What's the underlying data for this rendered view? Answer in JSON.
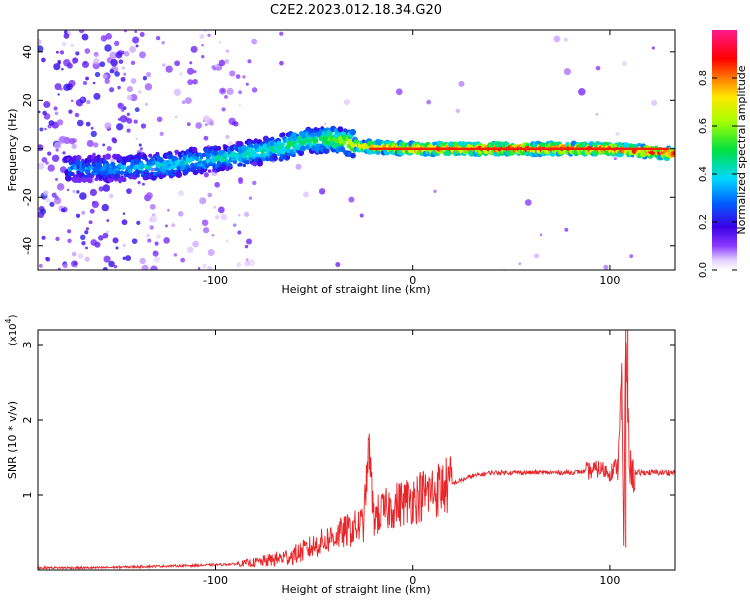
{
  "title": "C2E2.2023.012.18.34.G20",
  "chart_data": [
    {
      "type": "heatmap",
      "title": "C2E2.2023.012.18.34.G20",
      "xlabel": "Height of straight line (km)",
      "ylabel": "Frequency (Hz)",
      "xlim": [
        -190,
        133
      ],
      "ylim": [
        -50,
        49
      ],
      "xticks": [
        -100,
        0,
        100
      ],
      "yticks": [
        -40,
        -20,
        0,
        20,
        40
      ],
      "colorbar": {
        "label": "Normalized spectral amplitude",
        "range": [
          0,
          1
        ],
        "ticks": [
          0.0,
          0.2,
          0.4,
          0.6,
          0.8
        ],
        "colormap": "rainbow (white-violet-blue-cyan-green-yellow-red-magenta)"
      },
      "ridge": [
        {
          "x": -170,
          "freq": -8,
          "amp": 0.3
        },
        {
          "x": -150,
          "freq": -8,
          "amp": 0.35
        },
        {
          "x": -130,
          "freq": -7,
          "amp": 0.4
        },
        {
          "x": -110,
          "freq": -5,
          "amp": 0.4
        },
        {
          "x": -90,
          "freq": -3,
          "amp": 0.45
        },
        {
          "x": -70,
          "freq": 0,
          "amp": 0.45
        },
        {
          "x": -55,
          "freq": 3,
          "amp": 0.5
        },
        {
          "x": -40,
          "freq": 4,
          "amp": 0.55
        },
        {
          "x": -25,
          "freq": 1,
          "amp": 0.75
        },
        {
          "x": 0,
          "freq": 0,
          "amp": 0.85
        },
        {
          "x": 50,
          "freq": 0,
          "amp": 0.9
        },
        {
          "x": 100,
          "freq": 0,
          "amp": 0.9
        },
        {
          "x": 133,
          "freq": -2,
          "amp": 0.85
        }
      ]
    },
    {
      "type": "line",
      "xlabel": "Height of straight line (km)",
      "ylabel": "SNR (10 * v/v)",
      "yunit": "(x10",
      "yunit_exp": "4",
      "yunit_close": ")",
      "xlim": [
        -190,
        133
      ],
      "ylim": [
        0,
        3.2
      ],
      "xticks": [
        -100,
        0,
        100
      ],
      "yticks": [
        1,
        2,
        3
      ],
      "color": "#e8262a",
      "series": [
        {
          "x": [
            -190,
            -160,
            -130,
            -110,
            -90,
            -80,
            -70,
            -60,
            -50,
            -40,
            -30,
            -25,
            -22,
            -20,
            -10,
            0,
            10,
            20,
            30,
            40,
            60,
            80,
            90,
            95,
            100,
            104,
            106,
            107,
            108,
            109,
            110,
            112,
            115,
            120,
            133
          ],
          "y": [
            0.03,
            0.03,
            0.05,
            0.06,
            0.08,
            0.1,
            0.14,
            0.2,
            0.32,
            0.45,
            0.55,
            0.62,
            1.7,
            0.7,
            0.85,
            0.95,
            1.05,
            1.15,
            1.25,
            1.3,
            1.3,
            1.3,
            1.32,
            1.35,
            1.3,
            1.4,
            2.6,
            0.3,
            3.2,
            2.1,
            1.4,
            1.25,
            1.3,
            1.3,
            1.3
          ]
        }
      ]
    }
  ]
}
